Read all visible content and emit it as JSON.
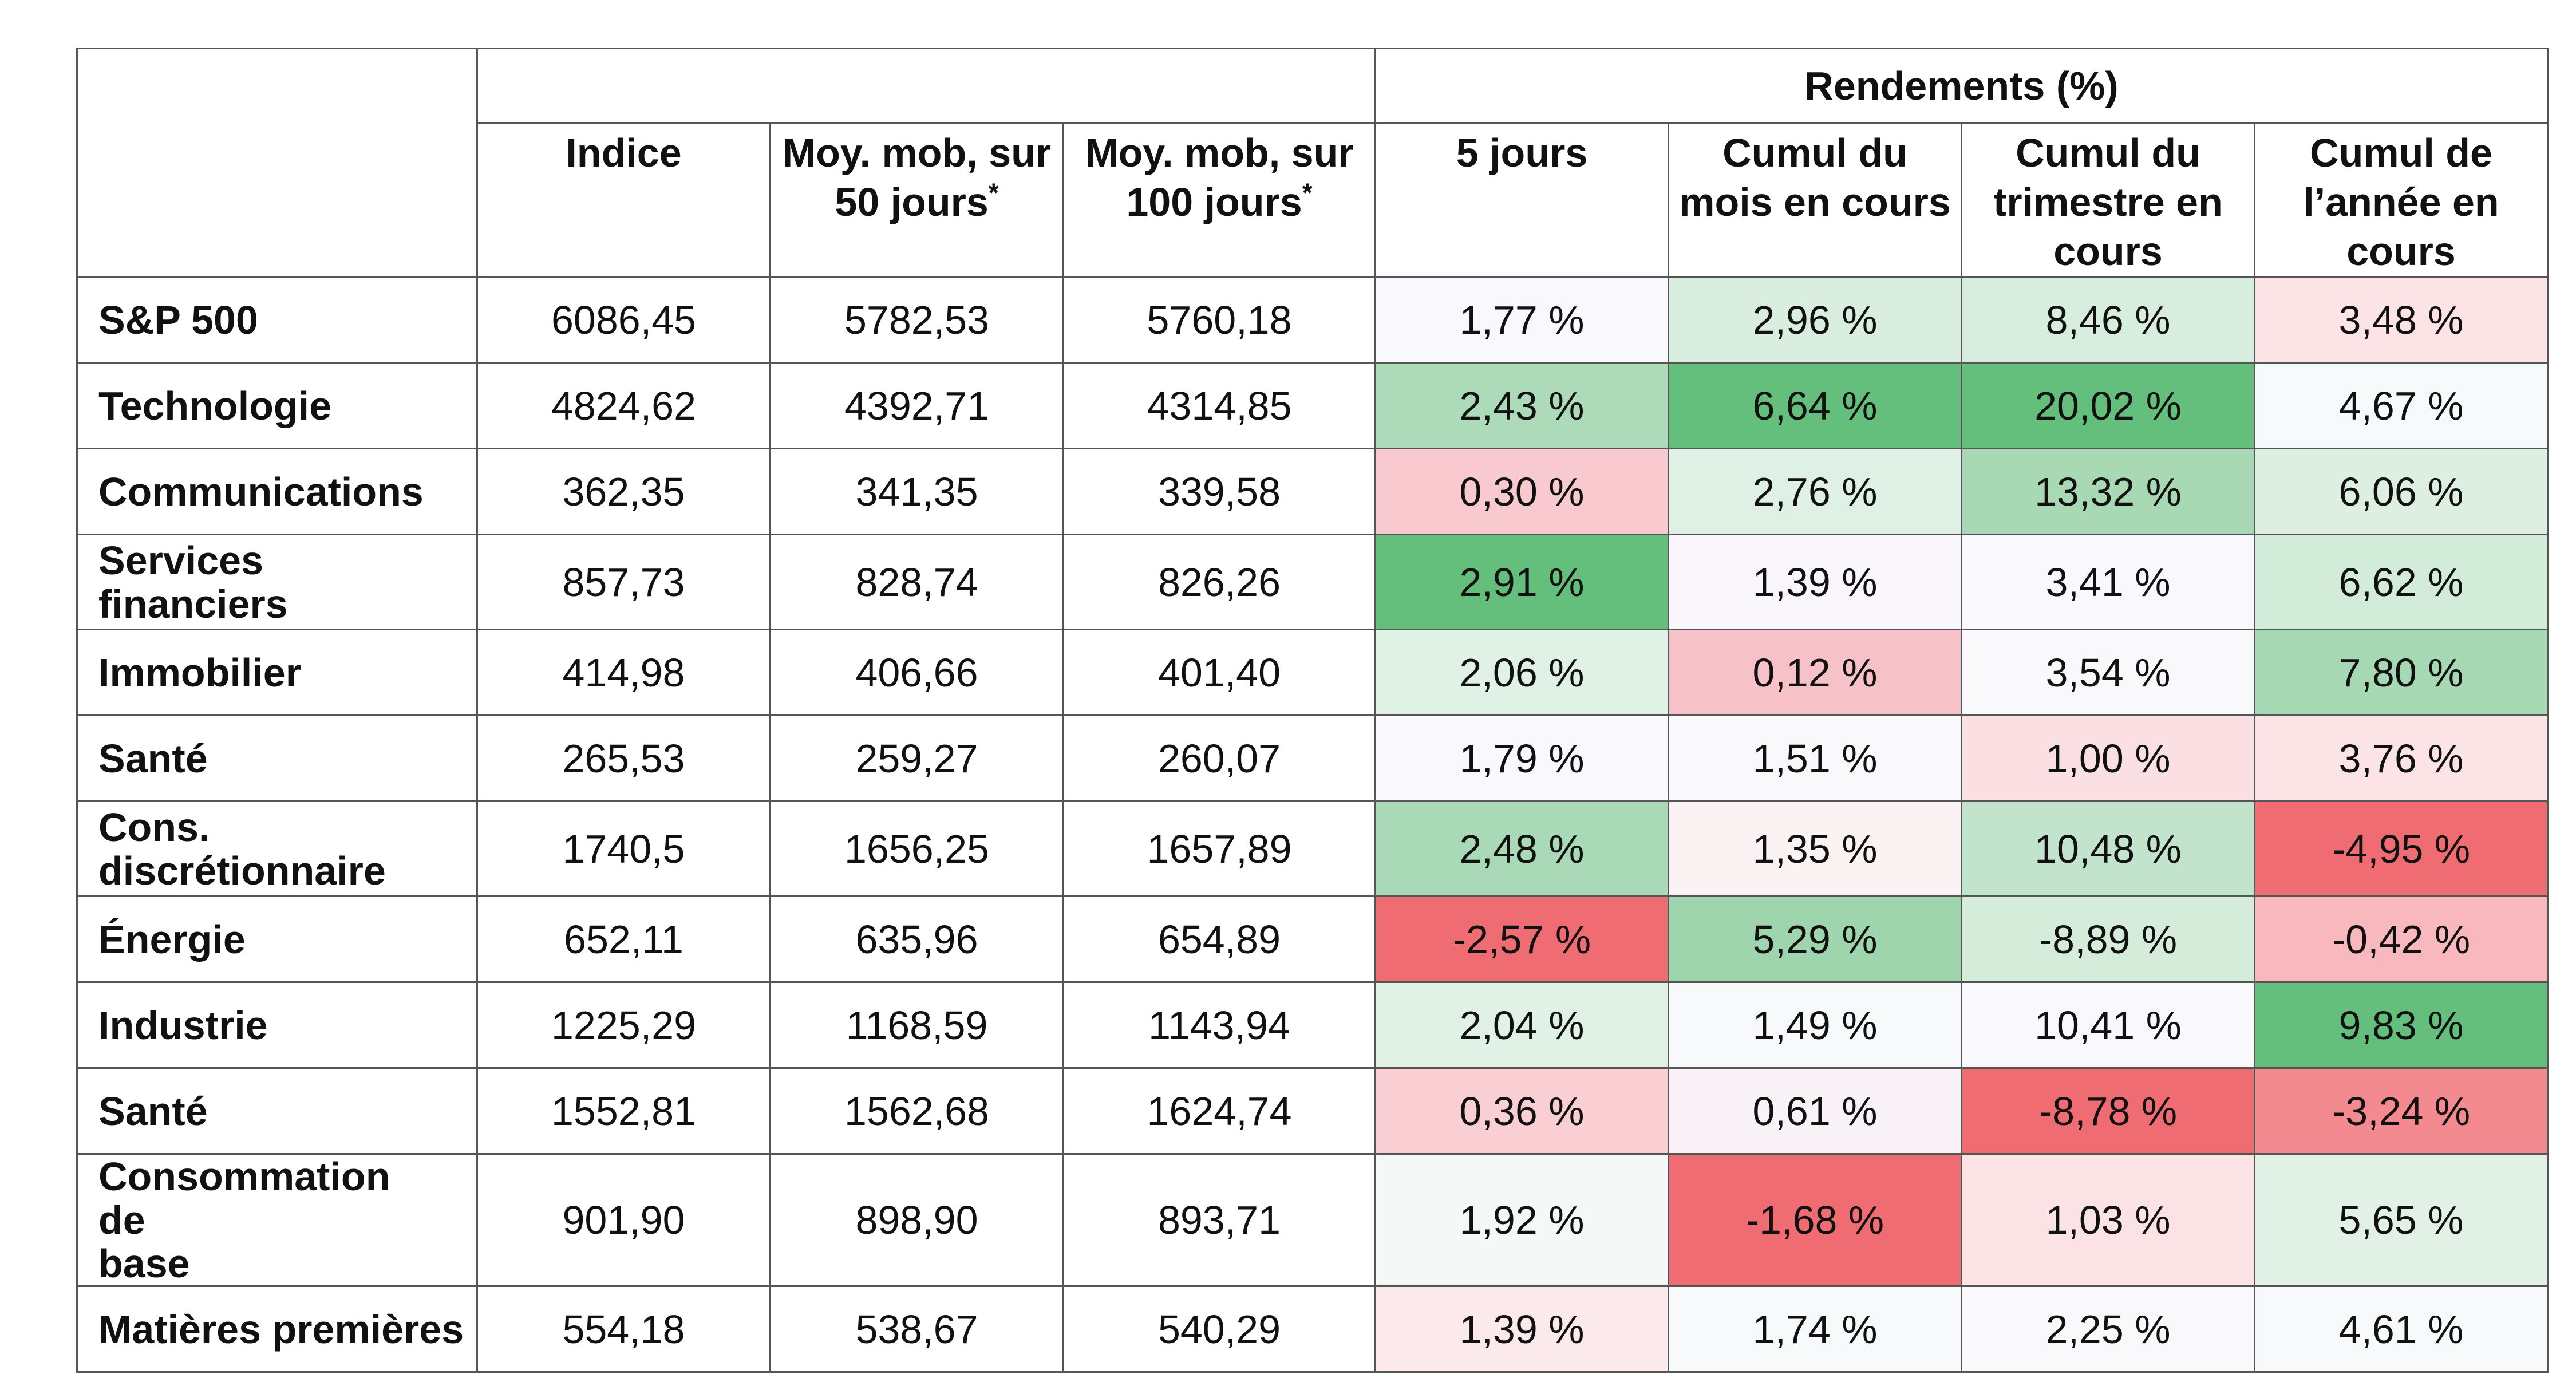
{
  "chart_data": {
    "type": "table",
    "group_header": "Rendements (%)",
    "columns": [
      {
        "label": "Indice",
        "note": ""
      },
      {
        "label": "Moy. mob, sur 50 jours",
        "note": "*"
      },
      {
        "label": "Moy. mob, sur 100 jours",
        "note": "*"
      },
      {
        "label": "5 jours",
        "note": ""
      },
      {
        "label": "Cumul du mois en cours",
        "note": ""
      },
      {
        "label": "Cumul du trimestre en cours",
        "note": ""
      },
      {
        "label": "Cumul de l’année en cours",
        "note": ""
      }
    ],
    "rows": [
      {
        "name": "S&P 500",
        "values": [
          "6086,45",
          "5782,53",
          "5760,18",
          "1,77 %",
          "2,96 %",
          "8,46 %",
          "3,48 %"
        ]
      },
      {
        "name": "Technologie",
        "values": [
          "4824,62",
          "4392,71",
          "4314,85",
          "2,43 %",
          "6,64 %",
          "20,02 %",
          "4,67 %"
        ]
      },
      {
        "name": "Communications",
        "values": [
          "362,35",
          "341,35",
          "339,58",
          "0,30 %",
          "2,76 %",
          "13,32 %",
          "6,06 %"
        ]
      },
      {
        "name": "Services financiers",
        "values": [
          "857,73",
          "828,74",
          "826,26",
          "2,91 %",
          "1,39 %",
          "3,41 %",
          "6,62 %"
        ]
      },
      {
        "name": "Immobilier",
        "values": [
          "414,98",
          "406,66",
          "401,40",
          "2,06 %",
          "0,12 %",
          "3,54 %",
          "7,80 %"
        ]
      },
      {
        "name": "Santé",
        "values": [
          "265,53",
          "259,27",
          "260,07",
          "1,79 %",
          "1,51 %",
          "1,00 %",
          "3,76 %"
        ]
      },
      {
        "name": "Cons. discrétionnaire",
        "values": [
          "1740,5",
          "1656,25",
          "1657,89",
          "2,48 %",
          "1,35 %",
          "10,48 %",
          "-4,95 %"
        ]
      },
      {
        "name": "Énergie",
        "values": [
          "652,11",
          "635,96",
          "654,89",
          "-2,57 %",
          "5,29 %",
          "-8,89 %",
          "-0,42 %"
        ]
      },
      {
        "name": "Industrie",
        "values": [
          "1225,29",
          "1168,59",
          "1143,94",
          "2,04 %",
          "1,49 %",
          "10,41 %",
          "9,83 %"
        ]
      },
      {
        "name": "Santé",
        "values": [
          "1552,81",
          "1562,68",
          "1624,74",
          "0,36 %",
          "0,61 %",
          "-8,78 %",
          "-3,24 %"
        ]
      },
      {
        "name": "Consommation de base",
        "values": [
          "901,90",
          "898,90",
          "893,71",
          "1,92 %",
          "-1,68 %",
          "1,03 %",
          "5,65 %"
        ]
      },
      {
        "name": "Matières premières",
        "values": [
          "554,18",
          "538,67",
          "540,29",
          "1,39 %",
          "1,74 %",
          "2,25 %",
          "4,61 %"
        ]
      }
    ],
    "cell_colors": [
      [
        "#f9f8fd",
        "#d9eedf",
        "#d7eddd",
        "#fce3e6"
      ],
      [
        "#addbb9",
        "#64bf7c",
        "#64bf7c",
        "#f6fafb"
      ],
      [
        "#f8cacf",
        "#dff1e4",
        "#a8d9b4",
        "#dcefe1"
      ],
      [
        "#64bf7c",
        "#f9f7fb",
        "#f9f8fc",
        "#d3ebd9"
      ],
      [
        "#e0f1e6",
        "#f6c2c7",
        "#f9f9fc",
        "#a6d8b3"
      ],
      [
        "#f9f8fd",
        "#f9f8fb",
        "#fbe0e3",
        "#fce3e6"
      ],
      [
        "#a9d9b6",
        "#fbf2f4",
        "#c3e4cc",
        "#f06c73"
      ],
      [
        "#f06c73",
        "#9fd5ad",
        "#d6ecdb",
        "#f8b8bd"
      ],
      [
        "#e0f1e6",
        "#f7f9fb",
        "#f9f8fc",
        "#64bf7c"
      ],
      [
        "#f9cfd3",
        "#f9f2f6",
        "#f06c73",
        "#f28a90"
      ],
      [
        "#f4f9f7",
        "#f06c73",
        "#fbe2e5",
        "#e1f1e6"
      ],
      [
        "#fce9ec",
        "#f7f9fb",
        "#f9f8fb",
        "#f8f9fb"
      ]
    ]
  }
}
